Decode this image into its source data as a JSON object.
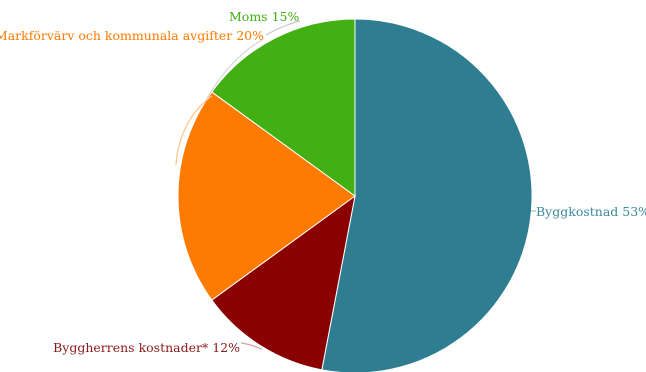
{
  "chart_data": {
    "type": "pie",
    "slices": [
      {
        "label": "Byggkostnad",
        "value": 53,
        "color": "#2e7d90",
        "text": "Byggkostnad 53%"
      },
      {
        "label": "Byggherrens kostnader*",
        "value": 12,
        "color": "#8b0000",
        "text": "Byggherrens kostnader* 12%"
      },
      {
        "label": "Markförvärv och kommunala avgifter",
        "value": 20,
        "color": "#ff7a00",
        "text": "Markförvärv och kommunala avgifter 20%"
      },
      {
        "label": "Moms",
        "value": 15,
        "color": "#42b012",
        "text": "Moms 15%"
      }
    ]
  }
}
